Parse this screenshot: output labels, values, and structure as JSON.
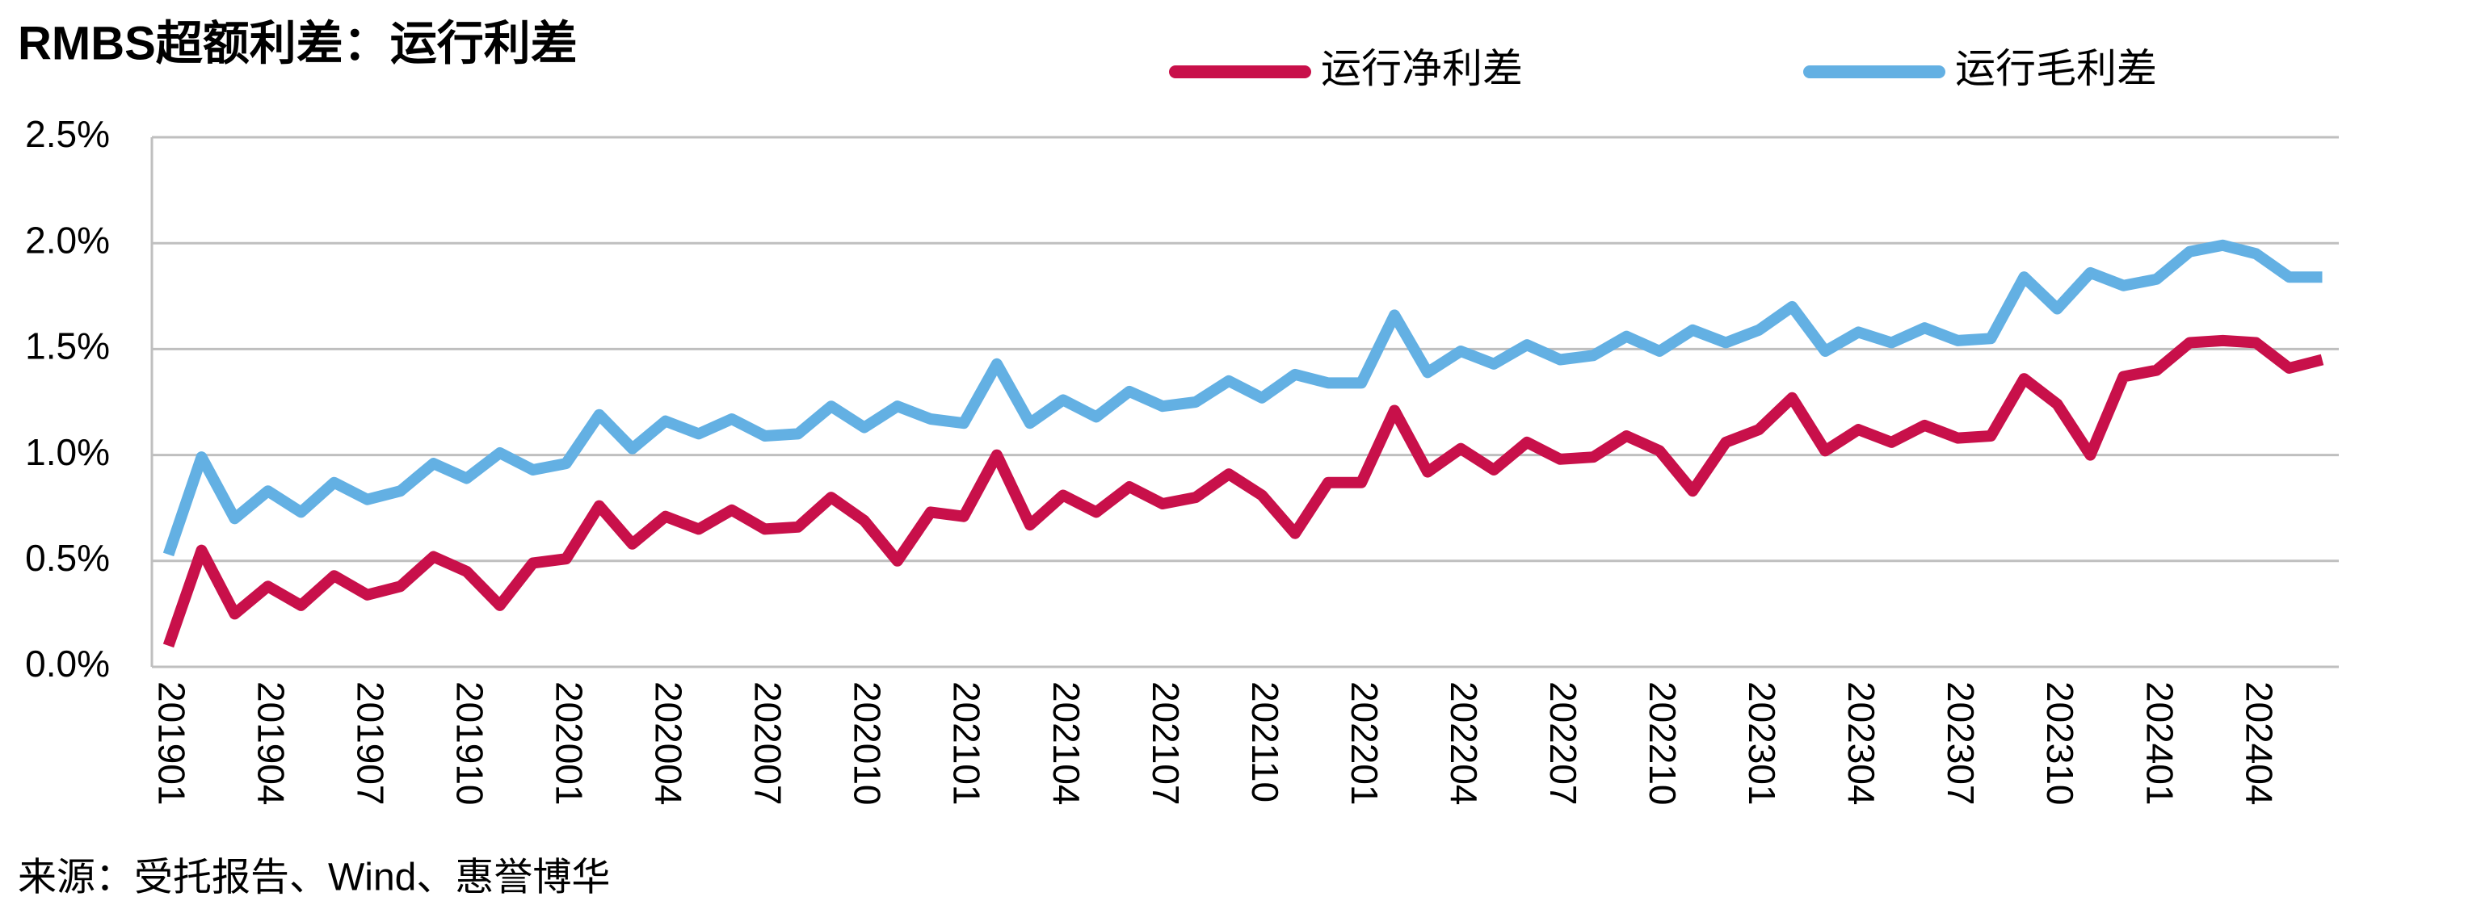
{
  "chart_data": {
    "type": "line",
    "title": "RMBS超额利差：运行利差",
    "source": "来源：受托报告、Wind、惠誉博华",
    "categories": [
      "201901",
      null,
      null,
      "201904",
      null,
      null,
      "201907",
      null,
      null,
      "201910",
      null,
      null,
      "202001",
      null,
      null,
      "202004",
      null,
      null,
      "202007",
      null,
      null,
      "202010",
      null,
      null,
      "202101",
      null,
      null,
      "202104",
      null,
      null,
      "202107",
      null,
      null,
      "202110",
      null,
      null,
      "202201",
      null,
      null,
      "202204",
      null,
      null,
      "202207",
      null,
      null,
      "202210",
      null,
      null,
      "202301",
      null,
      null,
      "202304",
      null,
      null,
      "202307",
      null,
      null,
      "202310",
      null,
      null,
      "202401",
      null,
      null,
      "202404",
      null,
      null
    ],
    "series": [
      {
        "name": "运行净利差",
        "color": "#c8104a",
        "values": [
          0.1,
          0.55,
          0.25,
          0.38,
          0.29,
          0.43,
          0.34,
          0.38,
          0.52,
          0.45,
          0.29,
          0.49,
          0.51,
          0.76,
          0.58,
          0.71,
          0.65,
          0.74,
          0.65,
          0.66,
          0.8,
          0.69,
          0.5,
          0.73,
          0.71,
          1.0,
          0.67,
          0.81,
          0.73,
          0.85,
          0.77,
          0.8,
          0.91,
          0.81,
          0.63,
          0.87,
          0.87,
          1.21,
          0.92,
          1.03,
          0.93,
          1.06,
          0.98,
          0.99,
          1.09,
          1.02,
          0.83,
          1.06,
          1.12,
          1.27,
          1.02,
          1.12,
          1.06,
          1.14,
          1.08,
          1.09,
          1.36,
          1.24,
          1.0,
          1.37,
          1.4,
          1.53,
          1.54,
          1.53,
          1.41,
          1.45
        ]
      },
      {
        "name": "运行毛利差",
        "color": "#63b0e3",
        "values": [
          0.53,
          0.99,
          0.7,
          0.83,
          0.73,
          0.87,
          0.79,
          0.83,
          0.96,
          0.89,
          1.01,
          0.93,
          0.96,
          1.19,
          1.03,
          1.16,
          1.1,
          1.17,
          1.09,
          1.1,
          1.23,
          1.13,
          1.23,
          1.17,
          1.15,
          1.43,
          1.15,
          1.26,
          1.18,
          1.3,
          1.23,
          1.25,
          1.35,
          1.27,
          1.38,
          1.34,
          1.34,
          1.66,
          1.39,
          1.49,
          1.43,
          1.52,
          1.45,
          1.47,
          1.56,
          1.49,
          1.59,
          1.53,
          1.59,
          1.7,
          1.49,
          1.58,
          1.53,
          1.6,
          1.54,
          1.55,
          1.84,
          1.69,
          1.86,
          1.8,
          1.83,
          1.96,
          1.99,
          1.95,
          1.84,
          1.84
        ]
      }
    ],
    "ylim": [
      0,
      2.5
    ],
    "yticks": [
      {
        "value": 0,
        "label": "0.0%"
      },
      {
        "value": 0.5,
        "label": "0.5%"
      },
      {
        "value": 1,
        "label": "1.0%"
      },
      {
        "value": 1.5,
        "label": "1.5%"
      },
      {
        "value": 2,
        "label": "2.0%"
      },
      {
        "value": 2.5,
        "label": "2.5%"
      }
    ],
    "grid": true
  }
}
